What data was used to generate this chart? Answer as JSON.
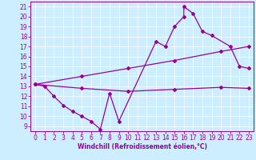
{
  "xlabel": "Windchill (Refroidissement éolien,°C)",
  "bg_color": "#cceeff",
  "line_color": "#990099",
  "xlim": [
    -0.5,
    23.5
  ],
  "ylim": [
    8.5,
    21.5
  ],
  "xticks": [
    0,
    1,
    2,
    3,
    4,
    5,
    6,
    7,
    8,
    9,
    10,
    11,
    12,
    13,
    14,
    15,
    16,
    17,
    18,
    19,
    20,
    21,
    22,
    23
  ],
  "yticks": [
    9,
    10,
    11,
    12,
    13,
    14,
    15,
    16,
    17,
    18,
    19,
    20,
    21
  ],
  "curve1_x": [
    0,
    1,
    2,
    3,
    4,
    5,
    6,
    7,
    8,
    9,
    13,
    14,
    15,
    16,
    16,
    17,
    18,
    19,
    21,
    22,
    23
  ],
  "curve1_y": [
    13.2,
    13.0,
    12.0,
    11.1,
    10.5,
    10.0,
    9.5,
    8.7,
    12.3,
    9.5,
    17.5,
    17.0,
    19.0,
    20.0,
    21.0,
    20.3,
    18.5,
    18.1,
    17.0,
    15.0,
    14.8
  ],
  "curve2_x": [
    0,
    5,
    10,
    15,
    20,
    23
  ],
  "curve2_y": [
    13.2,
    14.0,
    14.8,
    15.6,
    16.5,
    17.0
  ],
  "curve3_x": [
    0,
    5,
    10,
    15,
    20,
    23
  ],
  "curve3_y": [
    13.2,
    12.8,
    12.5,
    12.7,
    12.9,
    12.8
  ],
  "marker": "D",
  "markersize": 2.0,
  "linewidth": 0.9,
  "tick_fontsize": 5.5,
  "xlabel_fontsize": 5.5
}
